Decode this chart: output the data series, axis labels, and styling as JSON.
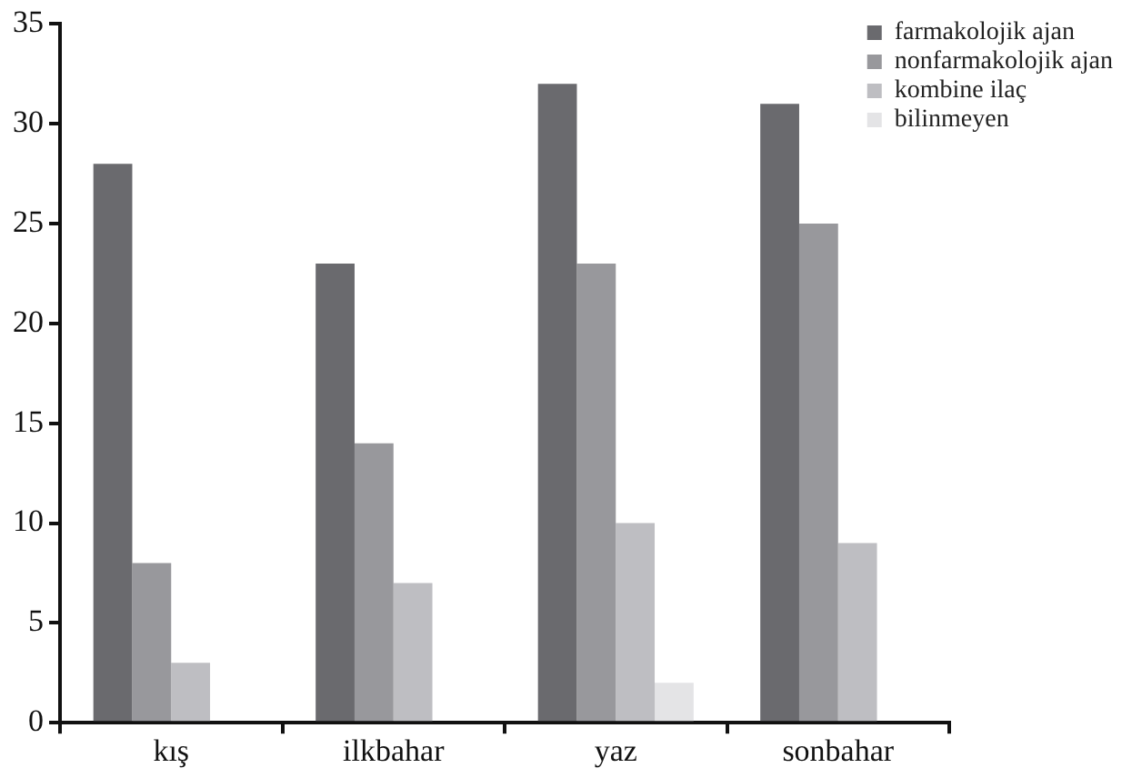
{
  "chart_data": {
    "type": "bar",
    "categories": [
      "kış",
      "ilkbahar",
      "yaz",
      "sonbahar"
    ],
    "series": [
      {
        "name": "farmakolojik ajan",
        "color": "#6a6a6e",
        "values": [
          28,
          23,
          32,
          31
        ]
      },
      {
        "name": "nonfarmakolojik ajan",
        "color": "#98989c",
        "values": [
          8,
          14,
          23,
          25
        ]
      },
      {
        "name": "kombine ilaç",
        "color": "#bebec2",
        "values": [
          3,
          7,
          10,
          9
        ]
      },
      {
        "name": "bilinmeyen",
        "color": "#e4e4e6",
        "values": [
          0,
          0,
          2,
          0
        ]
      }
    ],
    "ylim": [
      0,
      35
    ],
    "yticks": [
      0,
      5,
      10,
      15,
      20,
      25,
      30,
      35
    ],
    "grid": false,
    "legend": "top right"
  }
}
